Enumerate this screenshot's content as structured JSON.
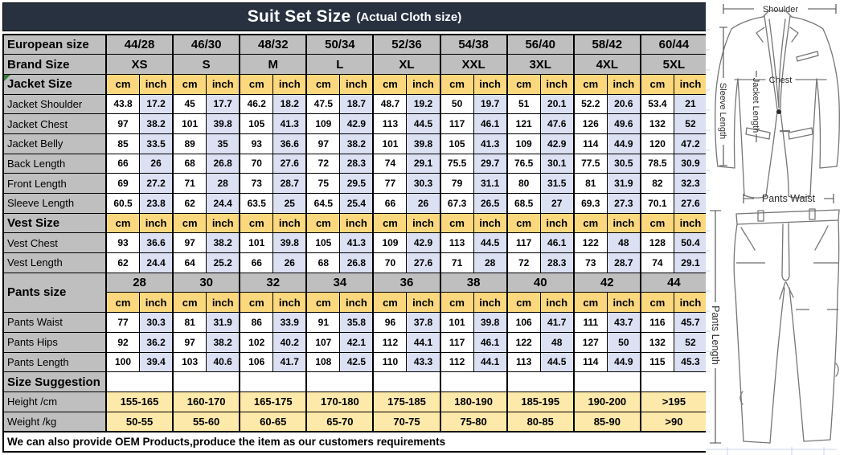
{
  "title": {
    "main": "Suit Set Size",
    "sub": "(Actual Cloth size)"
  },
  "footer": {
    "text": "We can also provide OEM Products,produce the item as our customers requirements"
  },
  "colors": {
    "title-bg": "#273140",
    "header-gray": "#bfbfbf",
    "unit-yellow": "#fbd87d",
    "cell-lavender": "#dbe0f3",
    "range-yellow": "#fde9a9",
    "grid-border": "#000000",
    "marker-green": "#2e7d32",
    "sketch-stroke": "#767676",
    "excel-grid": "#c9d6ea"
  },
  "diagram": {
    "labels": {
      "shoulder": "Shoulder",
      "chest": "Chest",
      "jacket_length": "Jacket Length",
      "sleeve_length": "Sleeve Length",
      "pants_waist": "Pants Waist",
      "pants_length": "Pants Length"
    }
  },
  "table": {
    "unit_labels": [
      "cm",
      "inch"
    ],
    "rows": [
      {
        "type": "group",
        "label": "European size",
        "section": true,
        "cells": [
          "44/28",
          "46/30",
          "48/32",
          "50/34",
          "52/36",
          "54/38",
          "56/40",
          "58/42",
          "60/44"
        ]
      },
      {
        "type": "group",
        "label": "Brand Size",
        "section": true,
        "cells": [
          "XS",
          "S",
          "M",
          "L",
          "XL",
          "XXL",
          "3XL",
          "4XL",
          "5XL"
        ]
      },
      {
        "type": "units",
        "label": "Jacket Size",
        "section": true,
        "marker": true
      },
      {
        "type": "data",
        "label": "Jacket Shoulder",
        "cells": [
          "43.8",
          "17.2",
          "45",
          "17.7",
          "46.2",
          "18.2",
          "47.5",
          "18.7",
          "48.7",
          "19.2",
          "50",
          "19.7",
          "51",
          "20.1",
          "52.2",
          "20.6",
          "53.4",
          "21"
        ]
      },
      {
        "type": "data",
        "label": "Jacket Chest",
        "cells": [
          "97",
          "38.2",
          "101",
          "39.8",
          "105",
          "41.3",
          "109",
          "42.9",
          "113",
          "44.5",
          "117",
          "46.1",
          "121",
          "47.6",
          "126",
          "49.6",
          "132",
          "52"
        ]
      },
      {
        "type": "data",
        "label": "Jacket Belly",
        "cells": [
          "85",
          "33.5",
          "89",
          "35",
          "93",
          "36.6",
          "97",
          "38.2",
          "101",
          "39.8",
          "105",
          "41.3",
          "109",
          "42.9",
          "114",
          "44.9",
          "120",
          "47.2"
        ]
      },
      {
        "type": "data",
        "label": "Back Length",
        "cells": [
          "66",
          "26",
          "68",
          "26.8",
          "70",
          "27.6",
          "72",
          "28.3",
          "74",
          "29.1",
          "75.5",
          "29.7",
          "76.5",
          "30.1",
          "77.5",
          "30.5",
          "78.5",
          "30.9"
        ]
      },
      {
        "type": "data",
        "label": "Front Length",
        "cells": [
          "69",
          "27.2",
          "71",
          "28",
          "73",
          "28.7",
          "75",
          "29.5",
          "77",
          "30.3",
          "79",
          "31.1",
          "80",
          "31.5",
          "81",
          "31.9",
          "82",
          "32.3"
        ]
      },
      {
        "type": "data",
        "label": "Sleeve Length",
        "cells": [
          "60.5",
          "23.8",
          "62",
          "24.4",
          "63.5",
          "25",
          "64.5",
          "25.4",
          "66",
          "26",
          "67.3",
          "26.5",
          "68.5",
          "27",
          "69.3",
          "27.3",
          "70.1",
          "27.6"
        ]
      },
      {
        "type": "units",
        "label": "Vest Size",
        "section": true
      },
      {
        "type": "data",
        "label": "Vest Chest",
        "cells": [
          "93",
          "36.6",
          "97",
          "38.2",
          "101",
          "39.8",
          "105",
          "41.3",
          "109",
          "42.9",
          "113",
          "44.5",
          "117",
          "46.1",
          "122",
          "48",
          "128",
          "50.4"
        ]
      },
      {
        "type": "data",
        "label": "Vest Length",
        "cells": [
          "62",
          "24.4",
          "64",
          "25.2",
          "66",
          "26",
          "68",
          "26.8",
          "70",
          "27.6",
          "71",
          "28",
          "72",
          "28.3",
          "73",
          "28.7",
          "74",
          "29.1"
        ]
      },
      {
        "type": "group",
        "label": "Pants size",
        "section": true,
        "label_rowspan": 2,
        "cells": [
          "28",
          "30",
          "32",
          "34",
          "36",
          "38",
          "40",
          "42",
          "44"
        ]
      },
      {
        "type": "units",
        "no_label": true
      },
      {
        "type": "data",
        "label": "Pants Waist",
        "cells": [
          "77",
          "30.3",
          "81",
          "31.9",
          "86",
          "33.9",
          "91",
          "35.8",
          "96",
          "37.8",
          "101",
          "39.8",
          "106",
          "41.7",
          "111",
          "43.7",
          "116",
          "45.7"
        ]
      },
      {
        "type": "data",
        "label": "Pants Hips",
        "cells": [
          "92",
          "36.2",
          "97",
          "38.2",
          "102",
          "40.2",
          "107",
          "42.1",
          "112",
          "44.1",
          "117",
          "46.1",
          "122",
          "48",
          "127",
          "50",
          "132",
          "52"
        ]
      },
      {
        "type": "data",
        "label": "Pants Length",
        "cells": [
          "100",
          "39.4",
          "103",
          "40.6",
          "106",
          "41.7",
          "108",
          "42.5",
          "110",
          "43.3",
          "112",
          "44.1",
          "113",
          "44.5",
          "114",
          "44.9",
          "115",
          "45.3"
        ]
      },
      {
        "type": "group",
        "label": "Size Suggestion",
        "section": true,
        "cell_class": "empty",
        "cells": [
          "",
          "",
          "",
          "",
          "",
          "",
          "",
          "",
          ""
        ]
      },
      {
        "type": "group",
        "label": "Height /cm",
        "cell_class": "range",
        "cells": [
          "155-165",
          "160-170",
          "165-175",
          "170-180",
          "175-185",
          "180-190",
          "185-195",
          "190-200",
          ">195"
        ]
      },
      {
        "type": "group",
        "label": "Weight /kg",
        "cell_class": "range",
        "cells": [
          "50-55",
          "55-60",
          "60-65",
          "65-70",
          "70-75",
          "75-80",
          "80-85",
          "85-90",
          ">90"
        ]
      }
    ]
  }
}
